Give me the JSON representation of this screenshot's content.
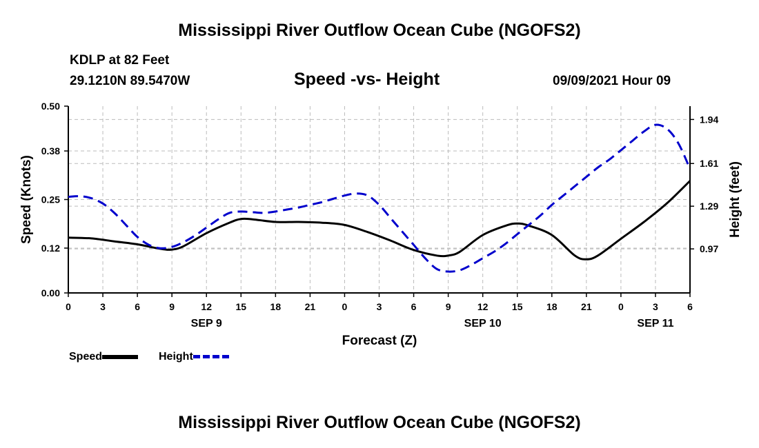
{
  "header": {
    "title": "Mississippi River Outflow Ocean Cube (NGOFS2)",
    "station": "KDLP at 82 Feet",
    "coords": "29.1210N  89.5470W",
    "subtitle": "Speed -vs- Height",
    "datetime": "09/09/2021 Hour 09"
  },
  "footer": {
    "title": "Mississippi River Outflow Ocean Cube (NGOFS2)"
  },
  "legend": {
    "speed_label": "Speed",
    "height_label": "Height"
  },
  "colors": {
    "speed": "#000000",
    "height": "#0000cc",
    "grid": "#bbbbbb"
  },
  "chart_data": {
    "type": "line",
    "xlabel": "Forecast (Z)",
    "ylabel_left": "Speed (Knots)",
    "ylabel_right": "Height (feet)",
    "x_unit": "forecast hours from 09/09 00Z",
    "xlim": [
      0,
      54
    ],
    "ylim_left": [
      0.0,
      0.5
    ],
    "ylim_right": [
      0.64,
      2.04
    ],
    "yticks_left": [
      0.0,
      0.12,
      0.25,
      0.38,
      0.5
    ],
    "ytick_labels_left": [
      "0.00",
      "0.12",
      "0.25",
      "0.38",
      "0.50"
    ],
    "yticks_right": [
      0.97,
      1.29,
      1.61,
      1.94
    ],
    "ytick_labels_right": [
      "0.97",
      "1.29",
      "1.61",
      "1.94"
    ],
    "xticks": [
      0,
      3,
      6,
      9,
      12,
      15,
      18,
      21,
      24,
      27,
      30,
      33,
      36,
      39,
      42,
      45,
      48,
      51,
      54
    ],
    "xtick_labels": [
      "0",
      "3",
      "6",
      "9",
      "12",
      "15",
      "18",
      "21",
      "0",
      "3",
      "6",
      "9",
      "12",
      "15",
      "18",
      "21",
      "0",
      "3",
      "6"
    ],
    "date_labels": [
      {
        "x": 12,
        "label": "SEP 9"
      },
      {
        "x": 36,
        "label": "SEP 10"
      },
      {
        "x": 51,
        "label": "SEP 11"
      }
    ],
    "grid": true,
    "series": [
      {
        "name": "Speed",
        "axis": "left",
        "x": [
          0,
          2,
          4,
          6,
          8,
          9,
          10,
          12,
          14,
          15,
          16,
          18,
          20,
          22,
          24,
          26,
          28,
          30,
          32,
          33,
          34,
          36,
          38,
          39,
          40,
          42,
          44,
          45,
          46,
          48,
          50,
          52,
          54
        ],
        "values": [
          0.148,
          0.146,
          0.138,
          0.13,
          0.118,
          0.116,
          0.125,
          0.16,
          0.188,
          0.198,
          0.197,
          0.19,
          0.19,
          0.188,
          0.182,
          0.163,
          0.14,
          0.115,
          0.1,
          0.1,
          0.11,
          0.155,
          0.18,
          0.186,
          0.18,
          0.155,
          0.1,
          0.09,
          0.1,
          0.145,
          0.19,
          0.24,
          0.3
        ]
      },
      {
        "name": "Height",
        "axis": "right",
        "x": [
          0,
          1,
          2,
          3,
          4,
          5,
          6,
          7,
          8,
          9,
          10,
          11,
          12,
          13,
          14,
          15,
          16,
          17,
          18,
          19,
          20,
          21,
          22,
          23,
          24,
          25,
          26,
          27,
          28,
          29,
          30,
          31,
          32,
          33,
          34,
          35,
          36,
          37,
          38,
          39,
          40,
          41,
          42,
          43,
          44,
          45,
          46,
          47,
          48,
          49,
          50,
          51,
          52,
          53,
          54
        ],
        "values": [
          1.36,
          1.365,
          1.35,
          1.31,
          1.24,
          1.15,
          1.06,
          1.0,
          0.975,
          0.985,
          1.02,
          1.07,
          1.13,
          1.19,
          1.24,
          1.25,
          1.245,
          1.24,
          1.25,
          1.265,
          1.28,
          1.3,
          1.32,
          1.345,
          1.37,
          1.385,
          1.37,
          1.3,
          1.2,
          1.1,
          1.0,
          0.9,
          0.82,
          0.8,
          0.81,
          0.85,
          0.9,
          0.95,
          1.01,
          1.08,
          1.15,
          1.22,
          1.3,
          1.37,
          1.44,
          1.51,
          1.58,
          1.64,
          1.71,
          1.78,
          1.85,
          1.9,
          1.87,
          1.76,
          1.57
        ]
      }
    ]
  }
}
